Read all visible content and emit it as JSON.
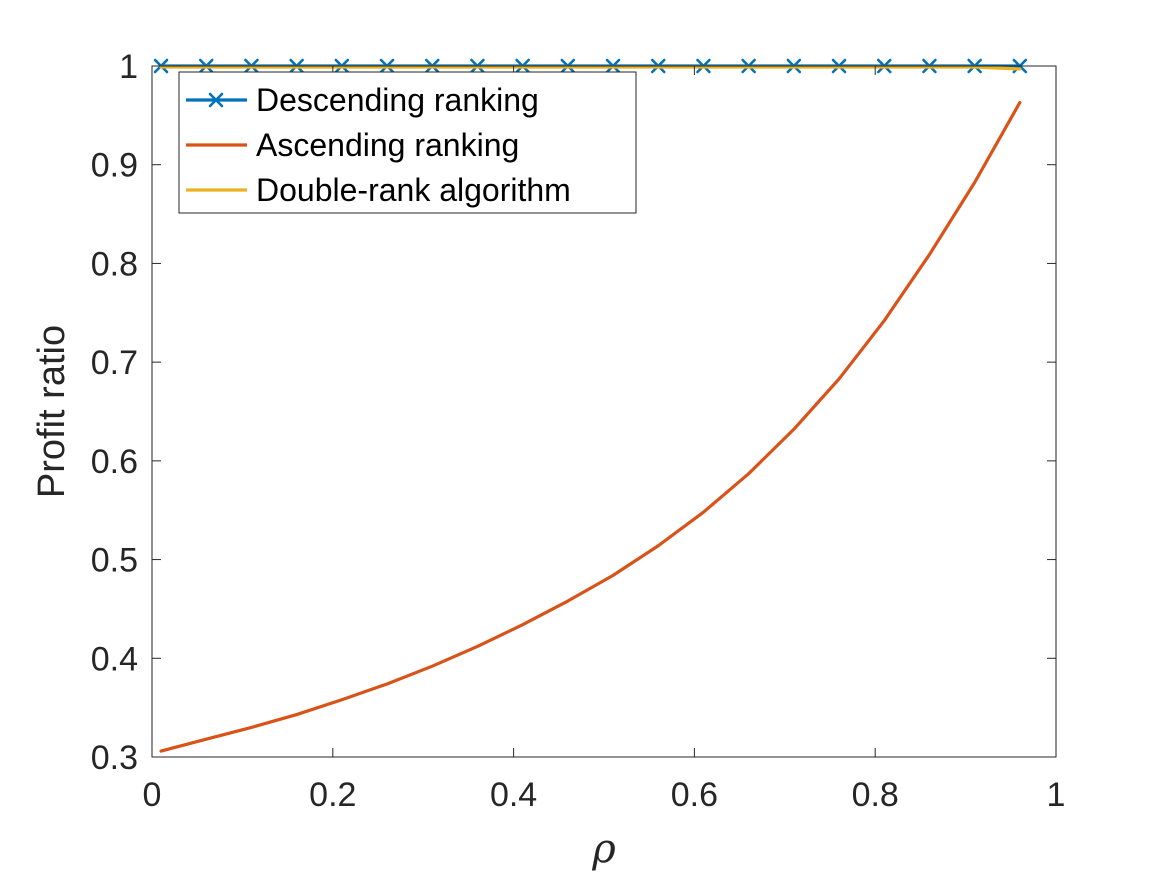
{
  "chart_data": {
    "type": "line",
    "title": "",
    "xlabel": "ρ",
    "ylabel": "Profit ratio",
    "xlim": [
      0,
      1
    ],
    "ylim": [
      0.3,
      1
    ],
    "xticks": [
      0,
      0.2,
      0.4,
      0.6,
      0.8,
      1
    ],
    "xtick_labels": [
      "0",
      "0.2",
      "0.4",
      "0.6",
      "0.8",
      "1"
    ],
    "yticks": [
      0.3,
      0.4,
      0.5,
      0.6,
      0.7,
      0.8,
      0.9,
      1
    ],
    "ytick_labels": [
      "0.3",
      "0.4",
      "0.5",
      "0.6",
      "0.7",
      "0.8",
      "0.9",
      "1"
    ],
    "grid": false,
    "legend_position": "top-left",
    "x": [
      0.01,
      0.06,
      0.11,
      0.16,
      0.21,
      0.26,
      0.31,
      0.36,
      0.41,
      0.46,
      0.51,
      0.56,
      0.61,
      0.66,
      0.71,
      0.76,
      0.81,
      0.86,
      0.91,
      0.96
    ],
    "series": [
      {
        "name": "Descending ranking",
        "color": "#0072BD",
        "marker": "x",
        "values": [
          1,
          1,
          1,
          1,
          1,
          1,
          1,
          1,
          1,
          1,
          1,
          1,
          1,
          1,
          1,
          1,
          1,
          1,
          1,
          1
        ]
      },
      {
        "name": "Ascending ranking",
        "color": "#D95319",
        "marker": "none",
        "values": [
          0.306,
          0.318,
          0.33,
          0.343,
          0.358,
          0.374,
          0.392,
          0.412,
          0.434,
          0.458,
          0.484,
          0.514,
          0.548,
          0.587,
          0.632,
          0.683,
          0.742,
          0.809,
          0.882,
          0.963
        ]
      },
      {
        "name": "Double-rank algorithm",
        "color": "#EDB120",
        "marker": "none",
        "values": [
          0.999,
          0.999,
          0.999,
          0.999,
          0.999,
          0.999,
          0.999,
          0.999,
          0.999,
          0.999,
          0.999,
          0.999,
          0.999,
          0.999,
          0.999,
          0.999,
          0.999,
          0.999,
          0.999,
          0.997
        ]
      }
    ]
  }
}
